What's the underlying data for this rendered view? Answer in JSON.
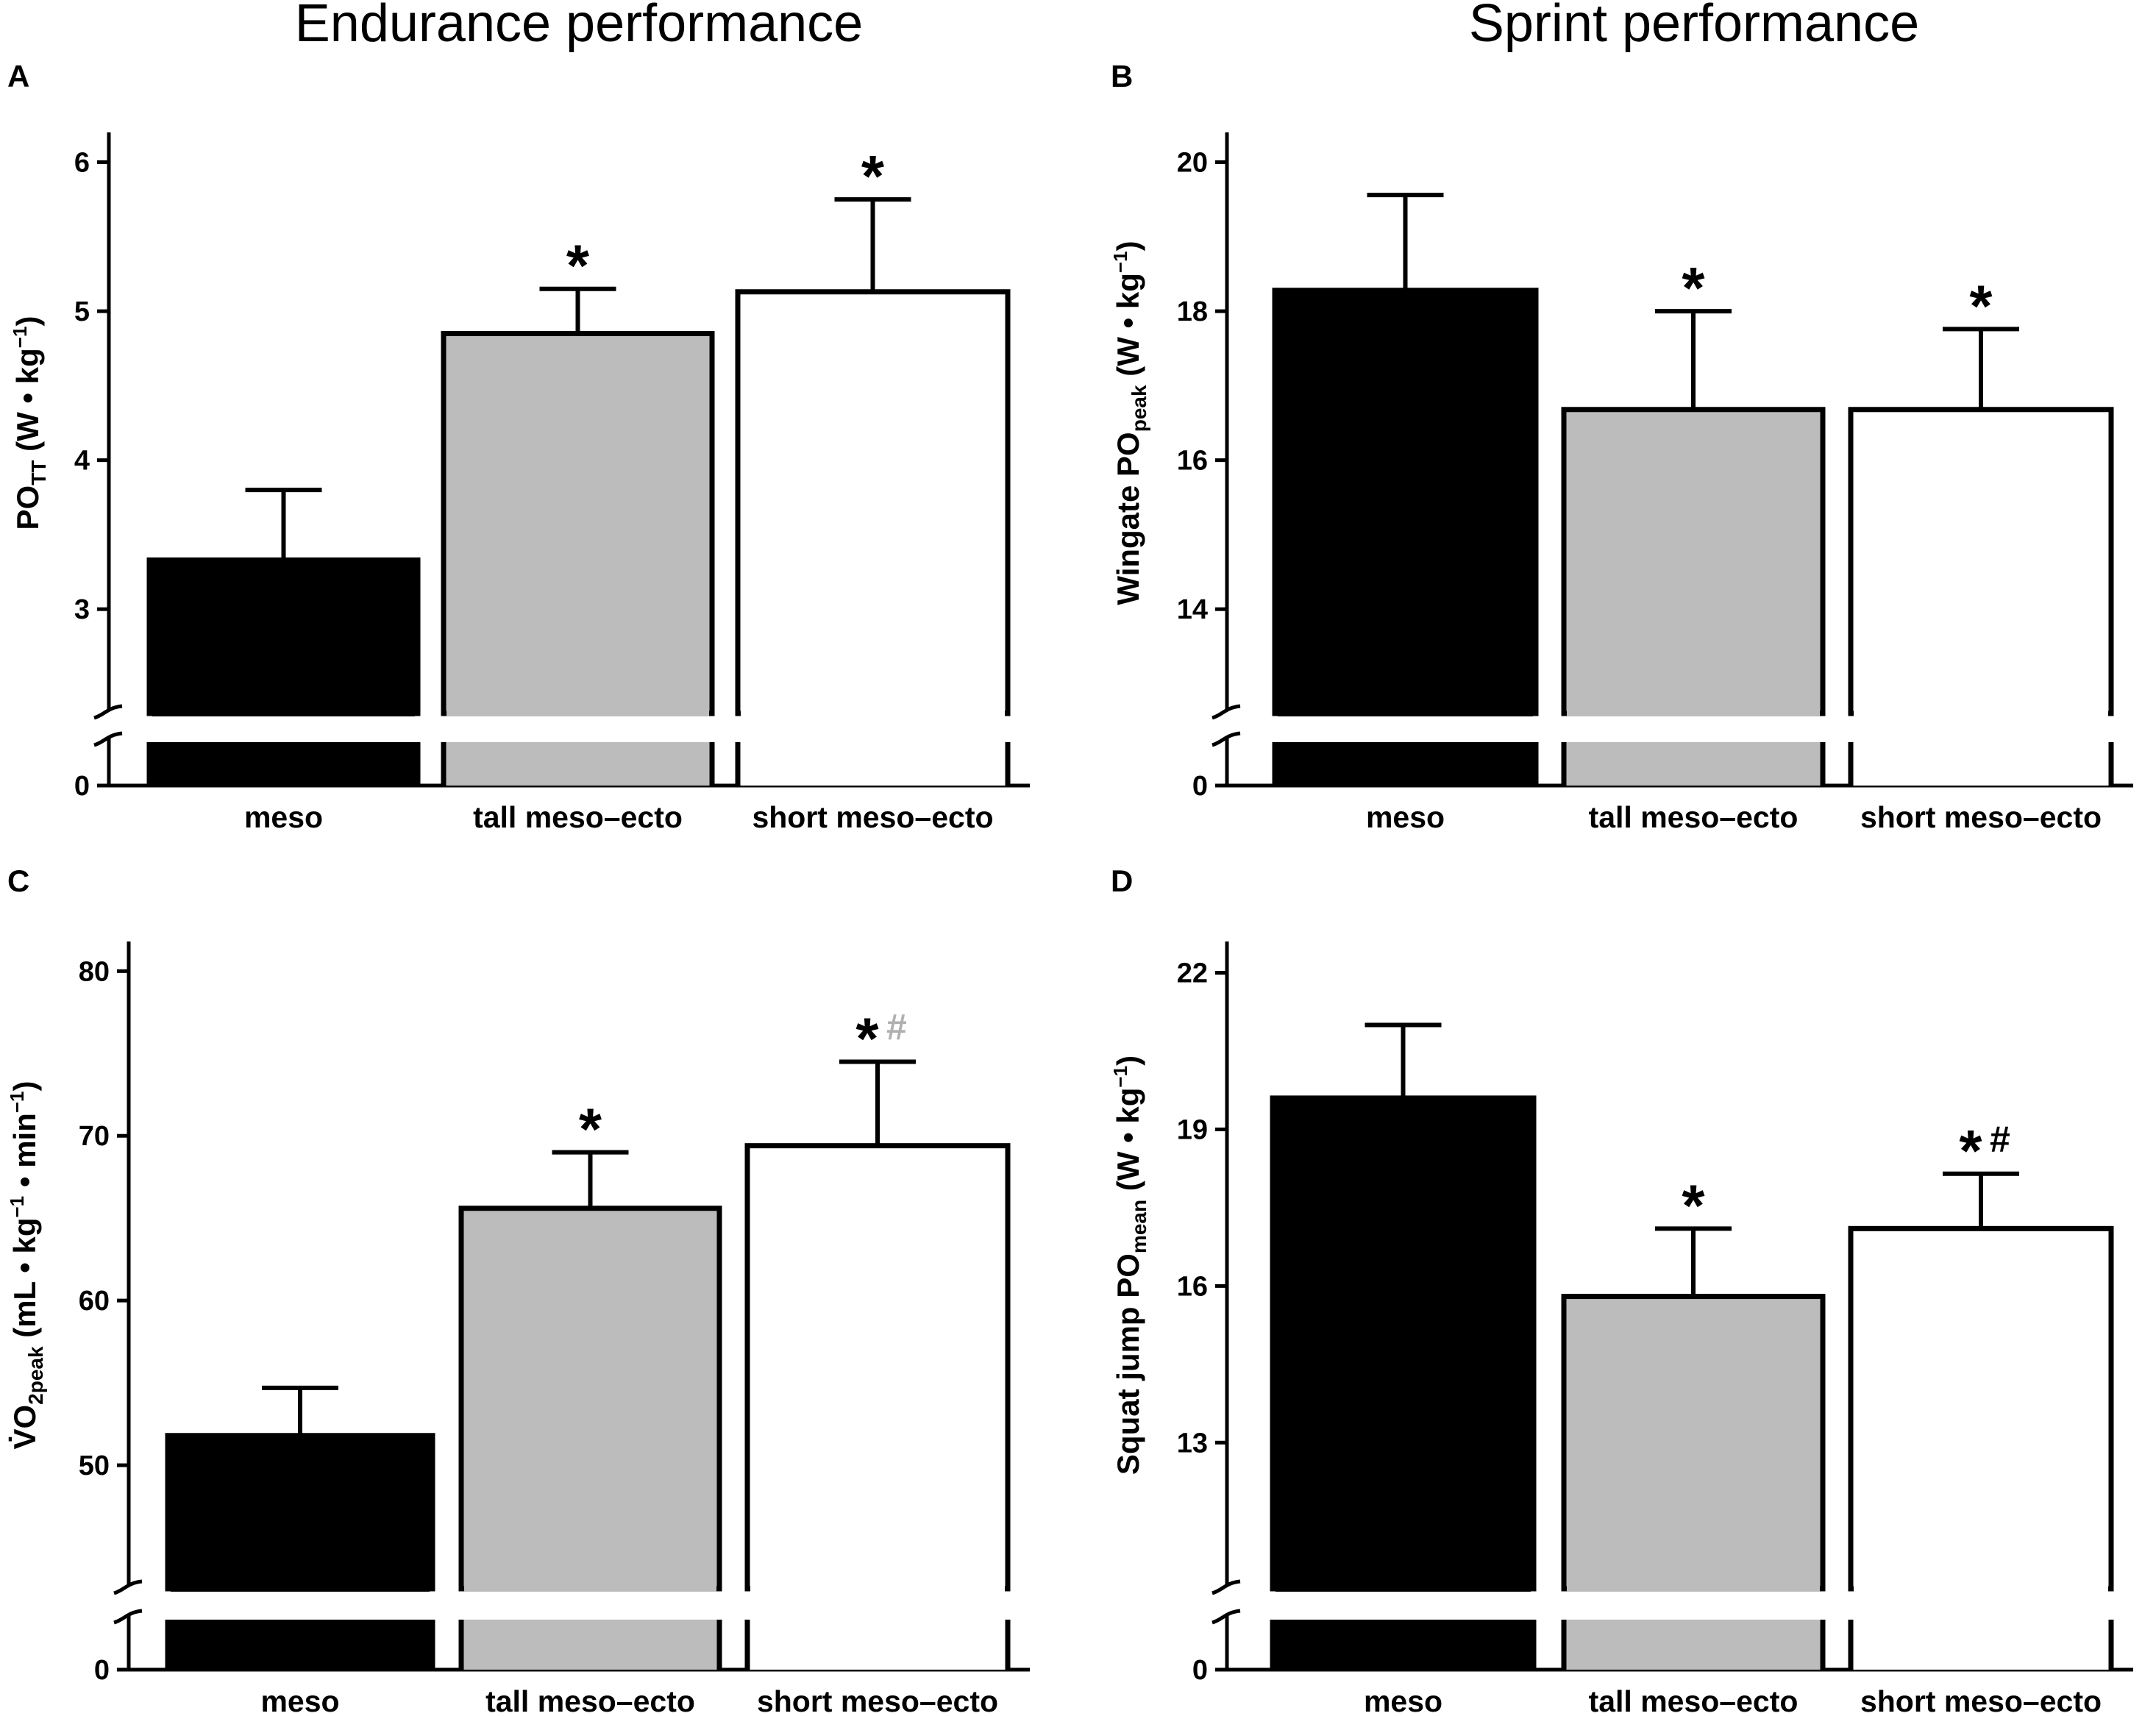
{
  "column_titles": {
    "left": "Endurance performance",
    "right": "Sprint performance"
  },
  "colors": {
    "meso": "#000000",
    "tall_meso_ecto": "#bcbcbc",
    "short_meso_ecto": "#ffffff",
    "grey_hash": "#b0b0b0"
  },
  "chart_data": [
    {
      "panel": "A",
      "type": "bar",
      "categories": [
        "meso",
        "tall meso–ecto",
        "short meso–ecto"
      ],
      "values": [
        3.33,
        4.85,
        5.13
      ],
      "errors": [
        0.47,
        0.3,
        0.62
      ],
      "annotations": [
        {
          "star": "",
          "hash": ""
        },
        {
          "star": "*",
          "hash": ""
        },
        {
          "star": "*",
          "hash": ""
        }
      ],
      "ylabel": "PO TT (W • kg⁻¹)",
      "ylabel_parts": {
        "main": "PO",
        "sub": "TT",
        "rest": " (W • kg",
        "sup": "−1",
        "end": ")"
      },
      "yticks": [
        3,
        4,
        5,
        6
      ],
      "ylim": [
        2.3,
        6.2
      ],
      "zero_label": "0",
      "axis_break": true
    },
    {
      "panel": "B",
      "type": "bar",
      "categories": [
        "meso",
        "tall meso–ecto",
        "short meso–ecto"
      ],
      "values": [
        18.28,
        16.68,
        16.68
      ],
      "errors": [
        1.28,
        1.32,
        1.08
      ],
      "annotations": [
        {
          "star": "",
          "hash": ""
        },
        {
          "star": "*",
          "hash": ""
        },
        {
          "star": "*",
          "hash": ""
        }
      ],
      "ylabel": "Wingate POpeak (W • kg⁻¹)",
      "ylabel_parts": {
        "main": "Wingate PO",
        "sub": "peak",
        "rest": " (W • kg",
        "sup": "−1",
        "end": ")"
      },
      "yticks": [
        14,
        16,
        18,
        20
      ],
      "ylim": [
        12.6,
        20.4
      ],
      "zero_label": "0",
      "axis_break": true
    },
    {
      "panel": "C",
      "type": "bar",
      "categories": [
        "meso",
        "tall meso–ecto",
        "short meso–ecto"
      ],
      "values": [
        51.8,
        65.6,
        69.4
      ],
      "errors": [
        2.9,
        3.4,
        5.1
      ],
      "annotations": [
        {
          "star": "",
          "hash": ""
        },
        {
          "star": "*",
          "hash": ""
        },
        {
          "star": "*",
          "hash": "#",
          "hash_color": "grey"
        }
      ],
      "ylabel": "V̇O2peak (mL • kg⁻¹ • min⁻¹)",
      "ylabel_parts": {
        "main": "V̇O",
        "sub": "2peak",
        "rest": " (mL • kg",
        "sup": "−1",
        "mid": " • min",
        "sup2": "−1",
        "end": ")"
      },
      "yticks": [
        50,
        60,
        70,
        80
      ],
      "ylim": [
        42.5,
        81.8
      ],
      "zero_label": "0",
      "axis_break": true
    },
    {
      "panel": "D",
      "type": "bar",
      "categories": [
        "meso",
        "tall meso–ecto",
        "short meso–ecto"
      ],
      "values": [
        19.6,
        15.8,
        17.1
      ],
      "errors": [
        1.4,
        1.3,
        1.05
      ],
      "annotations": [
        {
          "star": "",
          "hash": ""
        },
        {
          "star": "*",
          "hash": ""
        },
        {
          "star": "*",
          "hash": "#",
          "hash_color": "black"
        }
      ],
      "ylabel": "Squat jump POmean (W • kg⁻¹)",
      "ylabel_parts": {
        "main": "Squat jump PO",
        "sub": "mean",
        "rest": " (W • kg",
        "sup": "−1",
        "end": ")"
      },
      "yticks": [
        13,
        16,
        19,
        22
      ],
      "ylim": [
        10.2,
        22.6
      ],
      "zero_label": "0",
      "axis_break": true
    }
  ]
}
